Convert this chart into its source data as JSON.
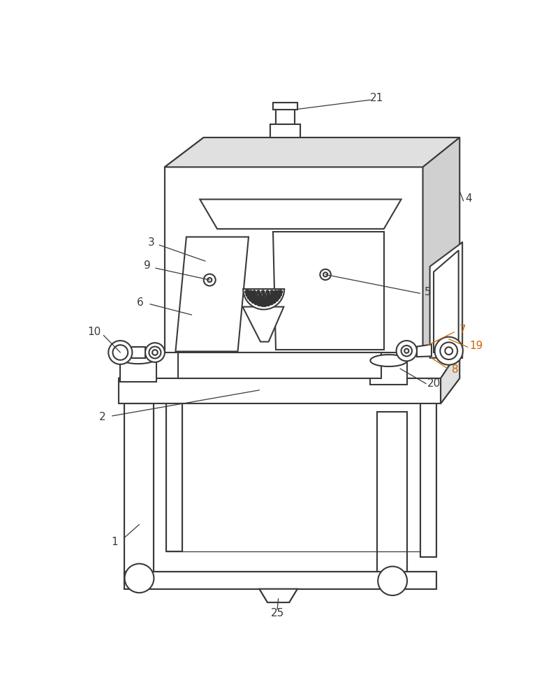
{
  "lc": "#3a3a3a",
  "lw": 1.5,
  "tlw": 0.9,
  "bg": "#ffffff",
  "orange": "#cc6600",
  "fs": 11,
  "gray1": "#e0e0e0",
  "gray2": "#d0d0d0"
}
